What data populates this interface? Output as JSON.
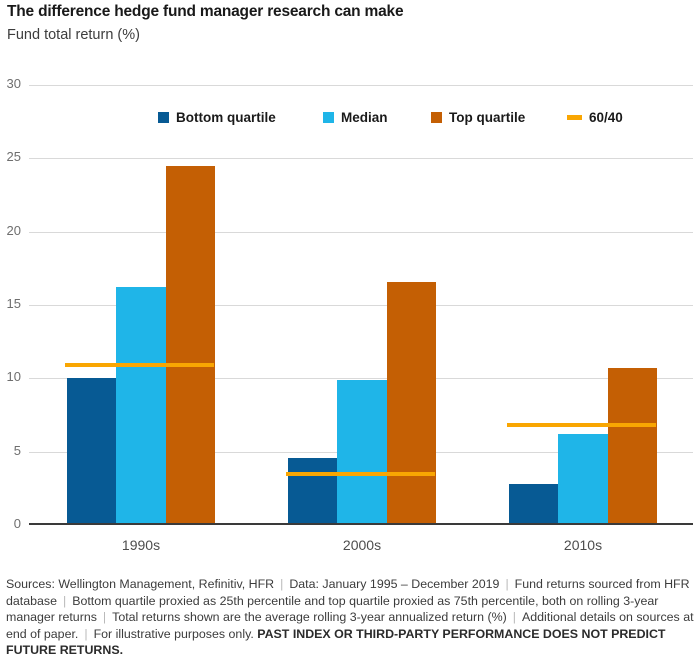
{
  "chart_data": {
    "type": "bar",
    "title": "The difference hedge fund manager research can make",
    "subtitle": "Fund total return (%)",
    "categories": [
      "1990s",
      "2000s",
      "2010s"
    ],
    "series": [
      {
        "name": "Bottom quartile",
        "color": "#075a94",
        "values": [
          10.0,
          4.6,
          2.8
        ]
      },
      {
        "name": "Median",
        "color": "#1fb5e8",
        "values": [
          16.2,
          9.9,
          6.2
        ]
      },
      {
        "name": "Top quartile",
        "color": "#c45f04",
        "values": [
          24.5,
          16.6,
          10.7
        ]
      }
    ],
    "overlay_line": {
      "name": "60/40",
      "color": "#f9a602",
      "values": [
        10.9,
        3.5,
        6.8
      ]
    },
    "xlabel": "",
    "ylabel": "Fund total return (%)",
    "ylim": [
      0,
      30
    ],
    "ytick_interval": 5,
    "grid": true,
    "legend_position": "top",
    "axis_colors": {
      "gridline": "#d9d9d9",
      "baseline": "#3a3a3a",
      "tick_label": "#6e6e6e",
      "category_label": "#4d4d4d"
    }
  },
  "footnote": {
    "separator": "|",
    "segments": [
      {
        "text": "Sources: Wellington Management, Refinitiv, HFR",
        "sep_after": true
      },
      {
        "text": "Data: January 1995 – December 2019",
        "sep_after": true
      },
      {
        "text": "Fund returns sourced from HFR database",
        "sep_after": true
      },
      {
        "text": "Bottom quartile proxied as 25th percentile and top quartile proxied as 75th percentile, both on rolling 3-year manager returns",
        "sep_after": true
      },
      {
        "text": "Total returns shown are the average rolling 3-year annualized return (%)",
        "sep_after": true
      },
      {
        "text": "Additional details on sources at end of paper.",
        "sep_after": true
      },
      {
        "text": "For illustrative purposes only.",
        "sep_after": false
      },
      {
        "text": "PAST INDEX OR THIRD-PARTY PERFORMANCE DOES NOT PREDICT FUTURE RETURNS.",
        "bold": true,
        "sep_after": false
      }
    ]
  }
}
